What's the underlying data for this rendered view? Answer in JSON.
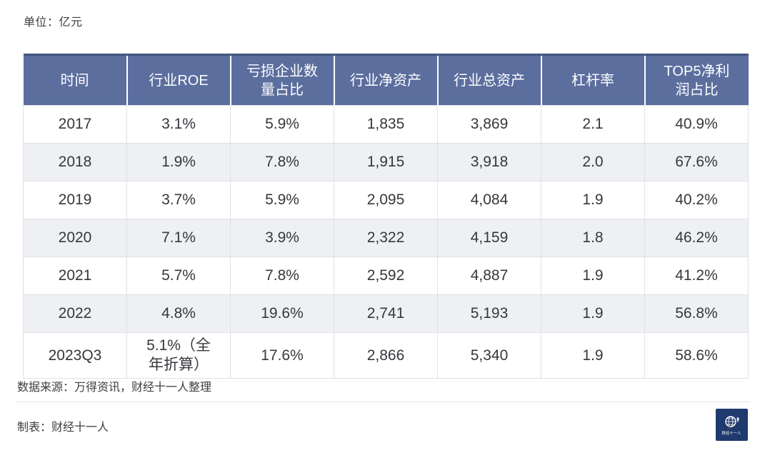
{
  "unit_label": "单位：亿元",
  "chart_data": {
    "type": "table",
    "unit": "亿元",
    "columns": [
      "时间",
      "行业ROE",
      "亏损企业数量占比",
      "行业净资产",
      "行业总资产",
      "杠杆率",
      "TOP5净利润占比"
    ],
    "rows": [
      [
        "2017",
        "3.1%",
        "5.9%",
        "1,835",
        "3,869",
        "2.1",
        "40.9%"
      ],
      [
        "2018",
        "1.9%",
        "7.8%",
        "1,915",
        "3,918",
        "2.0",
        "67.6%"
      ],
      [
        "2019",
        "3.7%",
        "5.9%",
        "2,095",
        "4,084",
        "1.9",
        "40.2%"
      ],
      [
        "2020",
        "7.1%",
        "3.9%",
        "2,322",
        "4,159",
        "1.8",
        "46.2%"
      ],
      [
        "2021",
        "5.7%",
        "7.8%",
        "2,592",
        "4,887",
        "1.9",
        "41.2%"
      ],
      [
        "2022",
        "4.8%",
        "19.6%",
        "2,741",
        "5,193",
        "1.9",
        "56.8%"
      ],
      [
        "2023Q3",
        "5.1%（全年折算）",
        "17.6%",
        "2,866",
        "5,340",
        "1.9",
        "58.6%"
      ]
    ]
  },
  "footer": {
    "source": "数据来源：万得资讯，财经十一人整理",
    "credit": "制表：财经十一人",
    "logo_text": "财经十一人"
  },
  "colors": {
    "header_bg": "#5b6e9e",
    "header_top_border": "#41567c",
    "row_alt_bg": "#eef0f3",
    "logo_bg": "#1e3a6e"
  }
}
